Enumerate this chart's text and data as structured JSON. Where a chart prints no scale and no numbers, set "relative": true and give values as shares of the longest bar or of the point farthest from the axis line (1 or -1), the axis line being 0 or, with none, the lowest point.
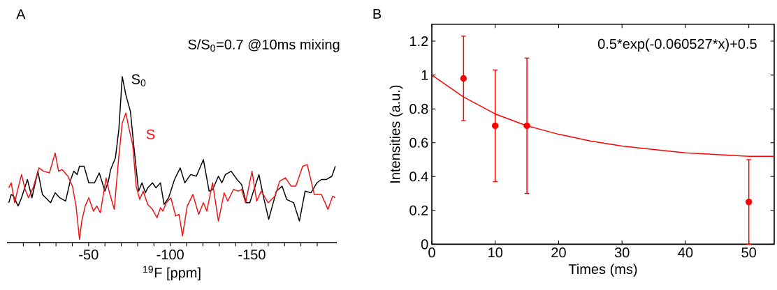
{
  "chart_data": [
    {
      "type": "line",
      "title": "A",
      "subtitle": "S/S$_{0}$=0.7 @10ms mixing",
      "xlabel": "$^{19}$F [ppm]",
      "relative": true,
      "marker": "none",
      "xlim": [
        0,
        -202
      ],
      "xticks": [
        {
          "value": -10,
          "label": null
        },
        {
          "value": -20,
          "label": null
        },
        {
          "value": -30,
          "label": null
        },
        {
          "value": -40,
          "label": null
        },
        -50,
        {
          "value": -60,
          "label": null
        },
        {
          "value": -70,
          "label": null
        },
        {
          "value": -80,
          "label": null
        },
        {
          "value": -90,
          "label": null
        },
        -100,
        {
          "value": -110,
          "label": null
        },
        {
          "value": -120,
          "label": null
        },
        {
          "value": -130,
          "label": null
        },
        {
          "value": -140,
          "label": null
        },
        -150,
        {
          "value": -160,
          "label": null
        },
        {
          "value": -170,
          "label": null
        },
        {
          "value": -180,
          "label": null
        },
        {
          "value": -190,
          "label": null
        }
      ],
      "series": [
        {
          "name": "S$_{0}$",
          "color": "#000000",
          "x": [
            -1.1,
            -2.6,
            -4.0,
            -6.8,
            -8.9,
            -12.5,
            -15.3,
            -18.9,
            -21.7,
            -26.7,
            -29.5,
            -32.3,
            -35.9,
            -38.7,
            -40.9,
            -43.0,
            -44.4,
            -47.2,
            -50.1,
            -53.6,
            -56.5,
            -60.0,
            -62.1,
            -63.5,
            -66.4,
            -68.5,
            -70.6,
            -72.8,
            -74.2,
            -75.6,
            -77.7,
            -80.6,
            -82.7,
            -84.8,
            -86.2,
            -89.1,
            -91.2,
            -94.0,
            -96.2,
            -99.0,
            -102.6,
            -106.1,
            -108.9,
            -112.5,
            -116.0,
            -120.3,
            -123.8,
            -126.0,
            -129.5,
            -131.6,
            -133.8,
            -137.3,
            -140.9,
            -143.7,
            -146.5,
            -148.7,
            -154.3,
            -157.2,
            -160.3,
            -165.0,
            -168.5,
            -171.3,
            -175.6,
            -179.1,
            -182.6,
            -186.2,
            -189.8,
            -192.6,
            -195.5,
            -199.0,
            -201.1
          ],
          "values": [
            0.24,
            0.29,
            0.28,
            0.22,
            0.27,
            0.38,
            0.27,
            0.43,
            0.29,
            0.24,
            0.3,
            0.27,
            0.25,
            0.37,
            0.43,
            0.41,
            0.46,
            0.46,
            0.36,
            0.36,
            0.42,
            0.31,
            0.37,
            0.44,
            0.51,
            0.68,
            1.0,
            0.89,
            0.84,
            0.79,
            0.58,
            0.31,
            0.36,
            0.3,
            0.33,
            0.36,
            0.33,
            0.36,
            0.23,
            0.27,
            0.38,
            0.45,
            0.36,
            0.41,
            0.4,
            0.5,
            0.31,
            0.32,
            0.4,
            0.36,
            0.41,
            0.43,
            0.38,
            0.35,
            0.24,
            0.24,
            0.41,
            0.27,
            0.14,
            0.31,
            0.34,
            0.26,
            0.24,
            0.13,
            0.31,
            0.3,
            0.36,
            0.38,
            0.38,
            0.4,
            0.46
          ]
        },
        {
          "name": "S",
          "color": "#ee1111",
          "x": [
            -1.1,
            -2.6,
            -4.7,
            -6.1,
            -8.9,
            -11.1,
            -13.2,
            -16.0,
            -19.6,
            -22.4,
            -26.0,
            -29.5,
            -31.6,
            -33.8,
            -37.3,
            -40.1,
            -42.3,
            -44.4,
            -45.8,
            -47.9,
            -50.1,
            -52.9,
            -55.0,
            -57.2,
            -60.7,
            -62.8,
            -65.7,
            -68.5,
            -70.6,
            -72.8,
            -74.9,
            -77.0,
            -79.1,
            -81.3,
            -83.4,
            -86.2,
            -89.1,
            -91.9,
            -94.0,
            -95.5,
            -97.6,
            -100.4,
            -103.3,
            -105.4,
            -107.5,
            -110.4,
            -113.9,
            -117.4,
            -120.3,
            -122.4,
            -125.9,
            -129.5,
            -133.0,
            -135.2,
            -138.7,
            -141.6,
            -143.7,
            -146.1,
            -150.1,
            -152.9,
            -155.7,
            -160.0,
            -164.2,
            -167.0,
            -170.6,
            -174.0,
            -176.9,
            -181.1,
            -183.9,
            -188.2,
            -192.6,
            -196.6,
            -199.5,
            -201.1
          ],
          "values": [
            0.33,
            0.36,
            0.24,
            0.3,
            0.41,
            0.32,
            0.27,
            0.33,
            0.45,
            0.43,
            0.42,
            0.54,
            0.43,
            0.44,
            0.4,
            0.34,
            0.22,
            0.02,
            0.13,
            0.22,
            0.27,
            0.19,
            0.22,
            0.18,
            0.39,
            0.3,
            0.2,
            0.52,
            0.72,
            0.78,
            0.68,
            0.59,
            0.34,
            0.26,
            0.31,
            0.23,
            0.2,
            0.15,
            0.21,
            0.19,
            0.24,
            0.27,
            0.16,
            0.17,
            0.04,
            0.22,
            0.29,
            0.17,
            0.24,
            0.19,
            0.36,
            0.13,
            0.3,
            0.25,
            0.32,
            0.31,
            0.32,
            0.24,
            0.43,
            0.25,
            0.31,
            0.24,
            0.28,
            0.37,
            0.39,
            0.34,
            0.34,
            0.46,
            0.47,
            0.29,
            0.29,
            0.2,
            0.28,
            0.27
          ]
        }
      ]
    },
    {
      "type": "scatter",
      "title": "B",
      "xlabel": "Times (ms)",
      "ylabel": "Intensities (a.u.)",
      "annotations": [
        "0.5*exp(-0.060527*x)+0.5"
      ],
      "xlim": [
        0,
        54
      ],
      "ylim": [
        0,
        1.3
      ],
      "xticks": [
        0,
        10,
        20,
        30,
        40,
        50
      ],
      "yticks": [
        0,
        0.2,
        0.4,
        0.6,
        0.8,
        1,
        1.2
      ],
      "series": [
        {
          "color": "#ff0000",
          "marker": "circle",
          "x": [
            5,
            10,
            15,
            50
          ],
          "values": [
            0.98,
            0.7,
            0.7,
            0.25
          ],
          "errors": [
            [
              0.73,
              1.23
            ],
            [
              0.37,
              1.03
            ],
            [
              0.3,
              1.1
            ],
            [
              0,
              0.5
            ]
          ]
        },
        {
          "type": "line",
          "color": "#ff0000",
          "marker": "none",
          "x": [
            0,
            5,
            10,
            15,
            20,
            25,
            30,
            35,
            40,
            45,
            50,
            54
          ],
          "values": [
            1.0,
            0.87,
            0.77,
            0.7,
            0.65,
            0.61,
            0.58,
            0.56,
            0.54,
            0.53,
            0.52,
            0.52
          ]
        }
      ]
    }
  ]
}
